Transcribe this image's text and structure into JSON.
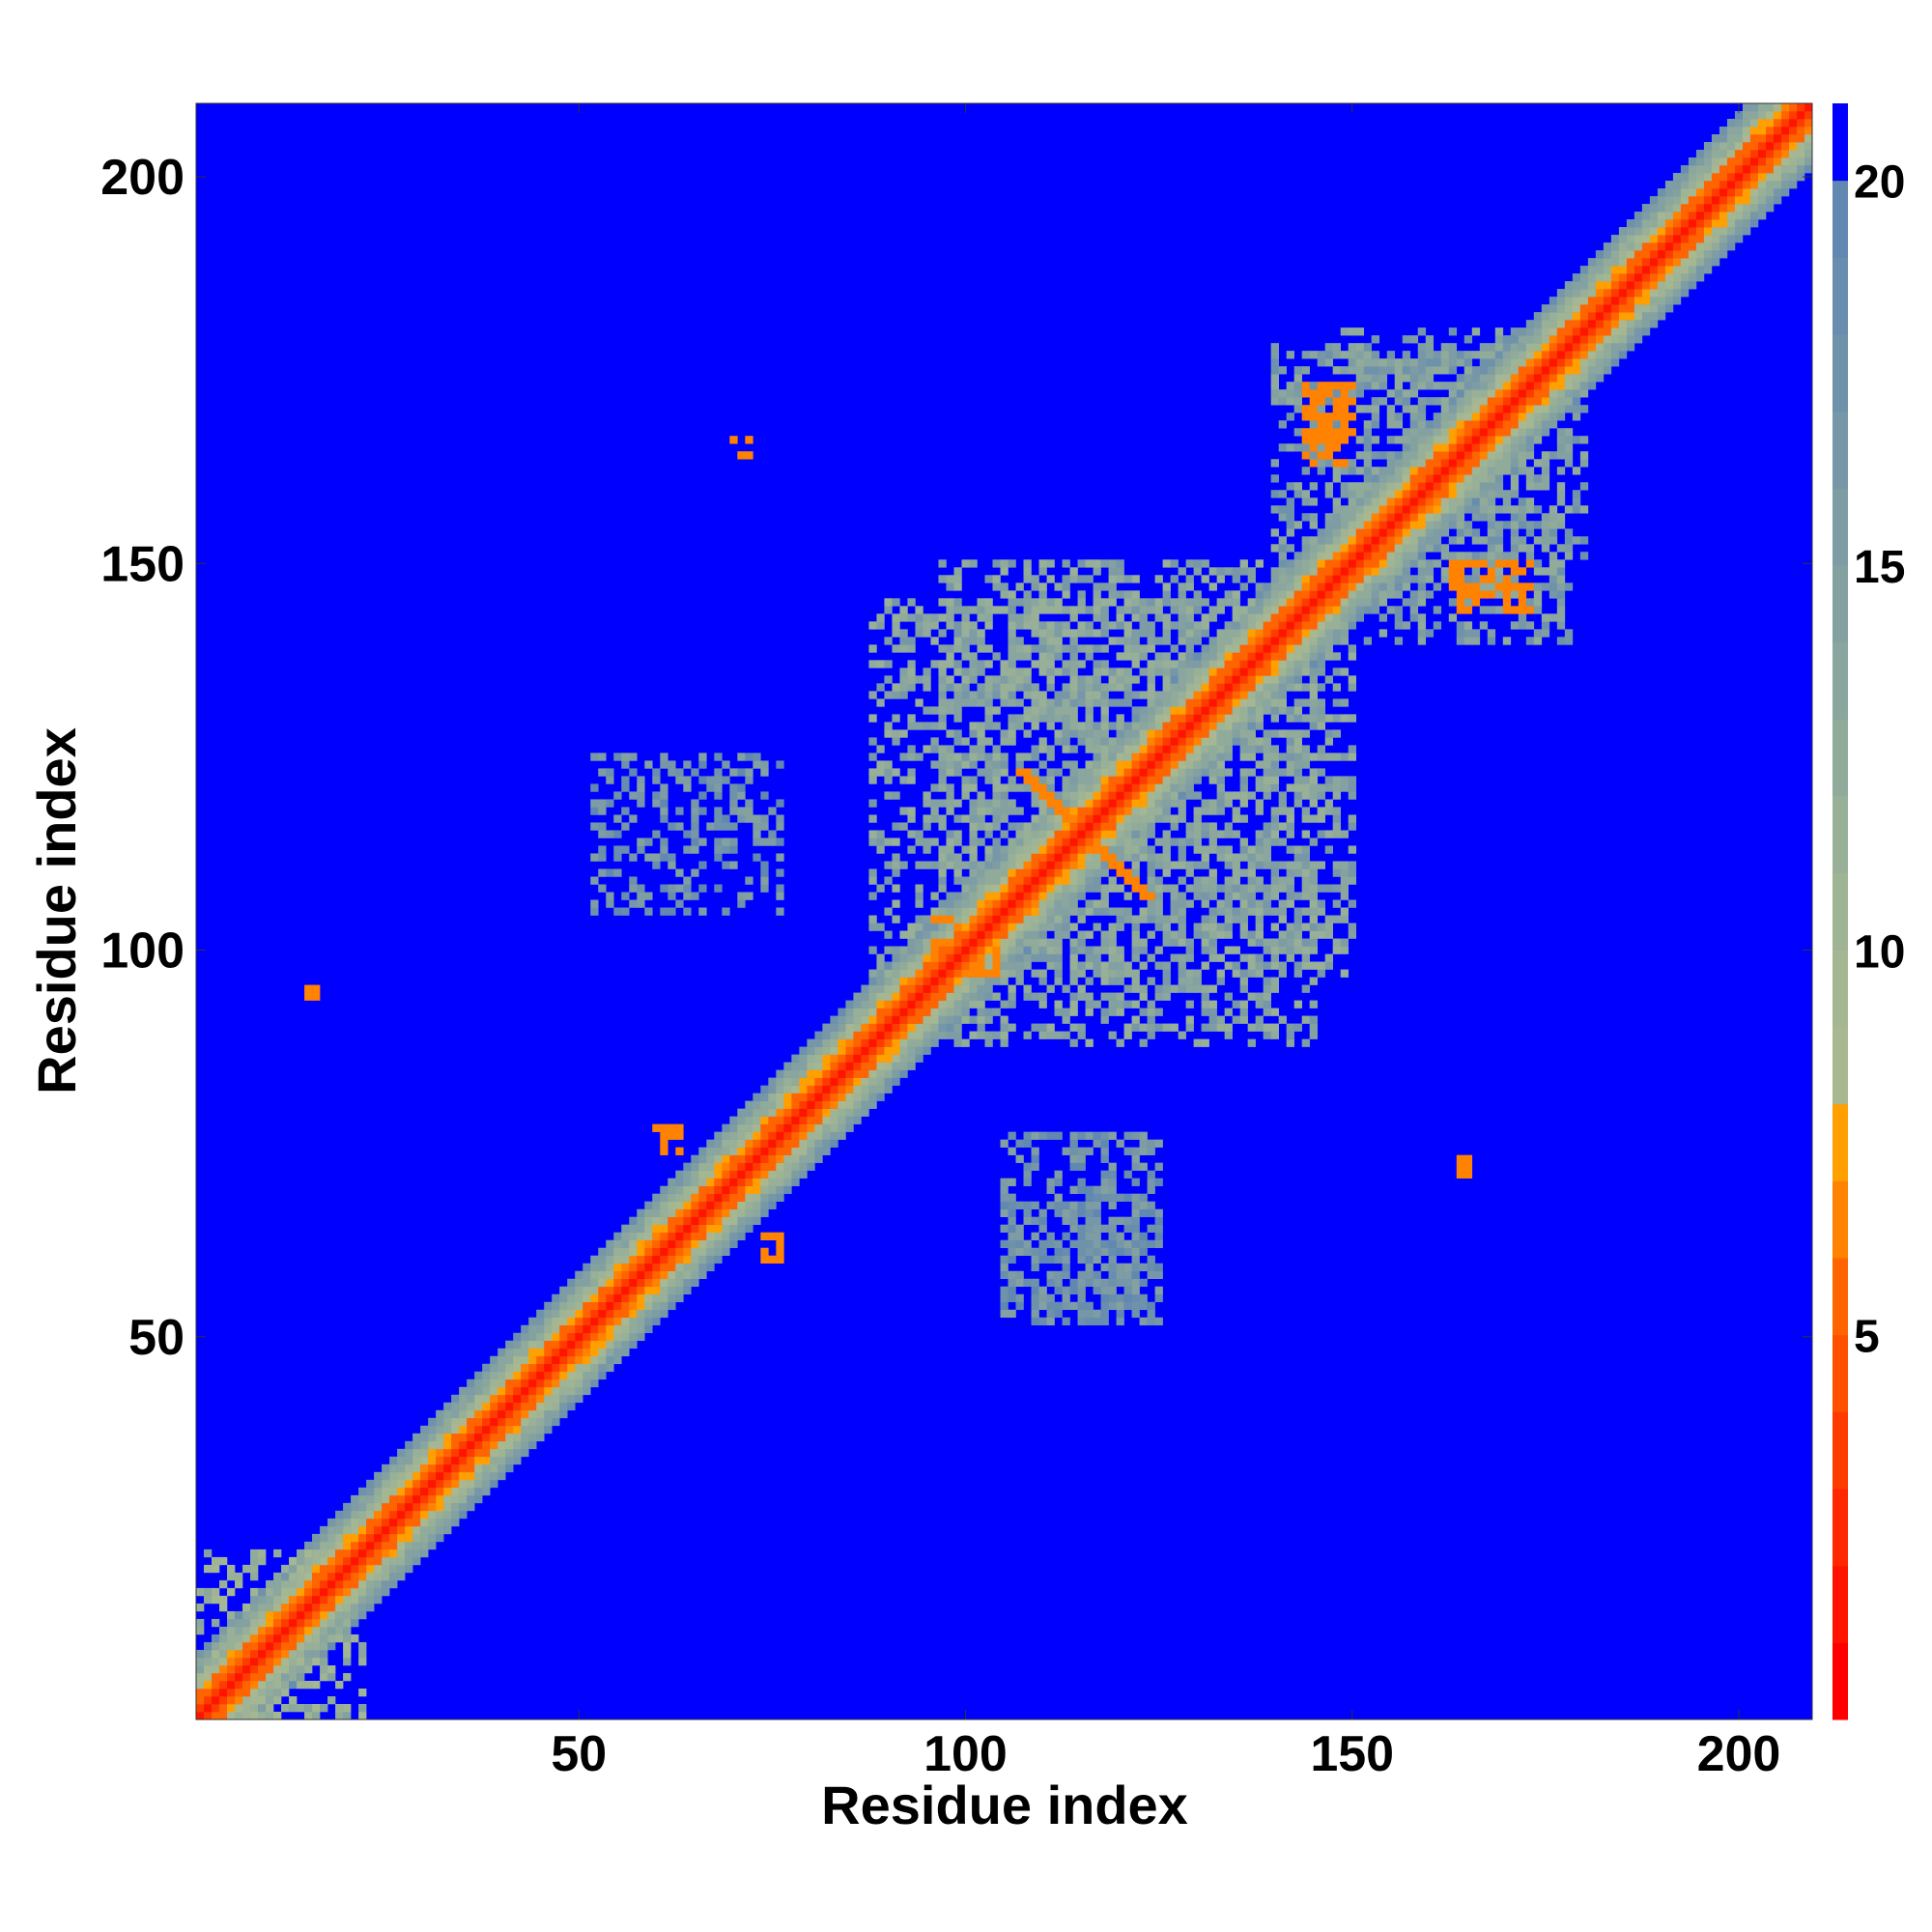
{
  "chart_data": {
    "type": "heatmap",
    "title": "",
    "xlabel": "Residue index",
    "ylabel": "Residue index",
    "xlim": [
      1,
      209
    ],
    "ylim": [
      1,
      209
    ],
    "x_ticks": [
      50,
      100,
      150,
      200
    ],
    "y_ticks": [
      50,
      100,
      150,
      200
    ],
    "colorbar": {
      "range": [
        0,
        21
      ],
      "ticks": [
        5,
        10,
        15,
        20
      ],
      "levels": [
        {
          "from": 0,
          "to": 1,
          "color": "#ff0000"
        },
        {
          "from": 1,
          "to": 2,
          "color": "#ff1400"
        },
        {
          "from": 2,
          "to": 3,
          "color": "#ff2800"
        },
        {
          "from": 3,
          "to": 4,
          "color": "#ff3c00"
        },
        {
          "from": 4,
          "to": 5,
          "color": "#ff5000"
        },
        {
          "from": 5,
          "to": 6,
          "color": "#ff6400"
        },
        {
          "from": 6,
          "to": 7,
          "color": "#ff8200"
        },
        {
          "from": 7,
          "to": 8,
          "color": "#ffa000"
        },
        {
          "from": 8,
          "to": 9,
          "color": "#a9b890"
        },
        {
          "from": 9,
          "to": 10,
          "color": "#a5b792"
        },
        {
          "from": 10,
          "to": 11,
          "color": "#9fb495"
        },
        {
          "from": 11,
          "to": 12,
          "color": "#98b098"
        },
        {
          "from": 12,
          "to": 13,
          "color": "#91ab9b"
        },
        {
          "from": 13,
          "to": 14,
          "color": "#8aa69e"
        },
        {
          "from": 14,
          "to": 15,
          "color": "#84a1a1"
        },
        {
          "from": 15,
          "to": 16,
          "color": "#7e9ca4"
        },
        {
          "from": 16,
          "to": 17,
          "color": "#7797a8"
        },
        {
          "from": 17,
          "to": 18,
          "color": "#6f92ab"
        },
        {
          "from": 18,
          "to": 19,
          "color": "#688dae"
        },
        {
          "from": 19,
          "to": 20,
          "color": "#6188b0"
        },
        {
          "from": 20,
          "to": 21,
          "color": "#0000ff"
        }
      ]
    },
    "background_value": 21,
    "diagonal_band": [
      {
        "offset": 0,
        "value": 1
      },
      {
        "offset": 1,
        "value": 3
      },
      {
        "offset": 2,
        "value": 5
      },
      {
        "offset": 3,
        "value": 6.5
      },
      {
        "offset": 4,
        "value": 9
      },
      {
        "offset": 5,
        "value": 11
      },
      {
        "offset": 6,
        "value": 13
      },
      {
        "offset": 7,
        "value": 15
      },
      {
        "offset": 8,
        "value": 17
      }
    ],
    "contact_regions": [
      {
        "x": [
          97,
          145
        ],
        "y": [
          88,
          150
        ],
        "value": 14
      },
      {
        "x": [
          88,
          150
        ],
        "y": [
          97,
          145
        ],
        "value": 14
      },
      {
        "x": [
          52,
          76
        ],
        "y": [
          105,
          125
        ],
        "value": 17
      },
      {
        "x": [
          105,
          125
        ],
        "y": [
          52,
          76
        ],
        "value": 17
      },
      {
        "x": [
          105,
          125
        ],
        "y": [
          52,
          68
        ],
        "value": 18
      },
      {
        "x": [
          140,
          180
        ],
        "y": [
          148,
          178
        ],
        "value": 15
      },
      {
        "x": [
          148,
          178
        ],
        "y": [
          140,
          180
        ],
        "value": 15
      },
      {
        "x": [
          1,
          22
        ],
        "y": [
          1,
          22
        ],
        "value": 12
      }
    ],
    "strong_contacts": [
      {
        "x": [
          107,
          122
        ],
        "y": [
          107,
          122
        ],
        "value": 6,
        "anti": true
      },
      {
        "x": [
          144,
          150
        ],
        "y": [
          163,
          173
        ],
        "value": 6
      },
      {
        "x": [
          163,
          173
        ],
        "y": [
          144,
          150
        ],
        "value": 6
      },
      {
        "x": [
          60,
          63
        ],
        "y": [
          74,
          77
        ],
        "value": 6
      },
      {
        "x": [
          74,
          77
        ],
        "y": [
          60,
          63
        ],
        "value": 6
      },
      {
        "x": [
          70,
          72
        ],
        "y": [
          164,
          166
        ],
        "value": 6
      },
      {
        "x": [
          15,
          16
        ],
        "y": [
          94,
          96
        ],
        "value": 6
      },
      {
        "x": [
          96,
          104
        ],
        "y": [
          97,
          104
        ],
        "value": 6
      },
      {
        "x": [
          164,
          165
        ],
        "y": [
          71,
          73
        ],
        "value": 6
      }
    ]
  }
}
